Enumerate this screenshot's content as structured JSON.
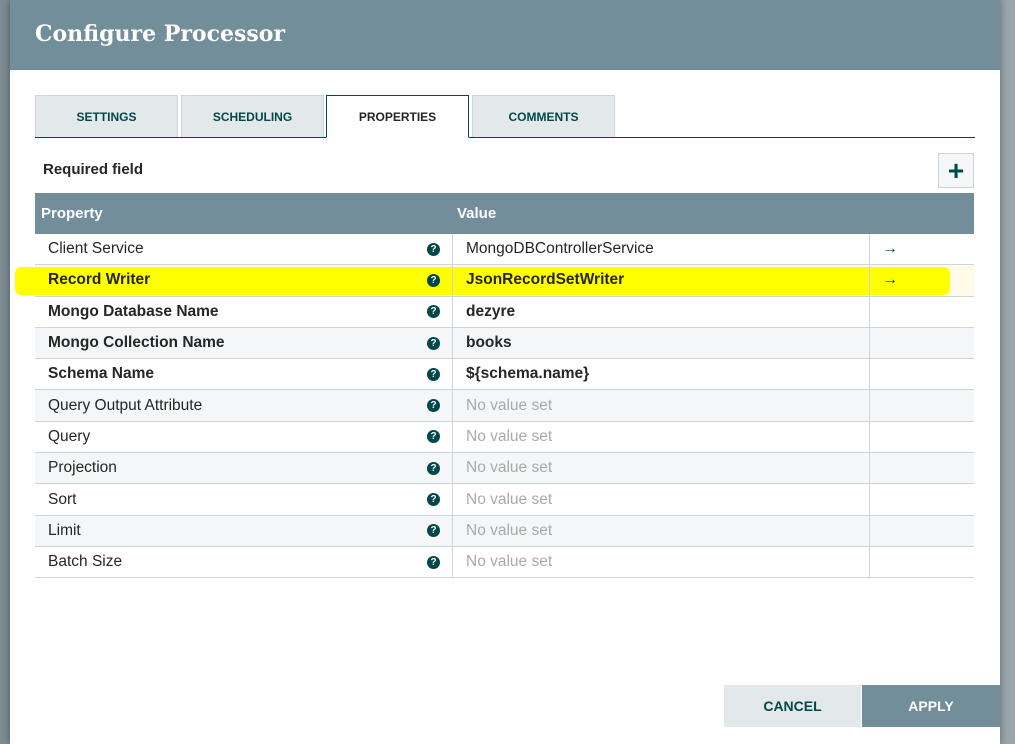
{
  "dialog": {
    "title": "Configure Processor"
  },
  "tabs": [
    {
      "label": "SETTINGS"
    },
    {
      "label": "SCHEDULING"
    },
    {
      "label": "PROPERTIES",
      "active": true
    },
    {
      "label": "COMMENTS"
    }
  ],
  "required_label": "Required field",
  "add_icon": "+",
  "table": {
    "headers": {
      "property": "Property",
      "value": "Value"
    },
    "rows": [
      {
        "property": "Client Service",
        "value": "MongoDBControllerService",
        "required": false,
        "arrow": "→"
      },
      {
        "property": "Record Writer",
        "value": "JsonRecordSetWriter",
        "required": true,
        "arrow": "→",
        "highlighted": true
      },
      {
        "property": "Mongo Database Name",
        "value": "dezyre",
        "required": true
      },
      {
        "property": "Mongo Collection Name",
        "value": "books",
        "required": true
      },
      {
        "property": "Schema Name",
        "value": "${schema.name}",
        "required": true
      },
      {
        "property": "Query Output Attribute",
        "value": "No value set",
        "required": false
      },
      {
        "property": "Query",
        "value": "No value set",
        "required": false
      },
      {
        "property": "Projection",
        "value": "No value set",
        "required": false
      },
      {
        "property": "Sort",
        "value": "No value set",
        "required": false
      },
      {
        "property": "Limit",
        "value": "No value set",
        "required": false
      },
      {
        "property": "Batch Size",
        "value": "No value set",
        "required": false
      }
    ]
  },
  "buttons": {
    "cancel": "CANCEL",
    "apply": "APPLY"
  },
  "colors": {
    "header": "#728e9b",
    "accent": "#004849",
    "highlight": "#ffff00"
  }
}
